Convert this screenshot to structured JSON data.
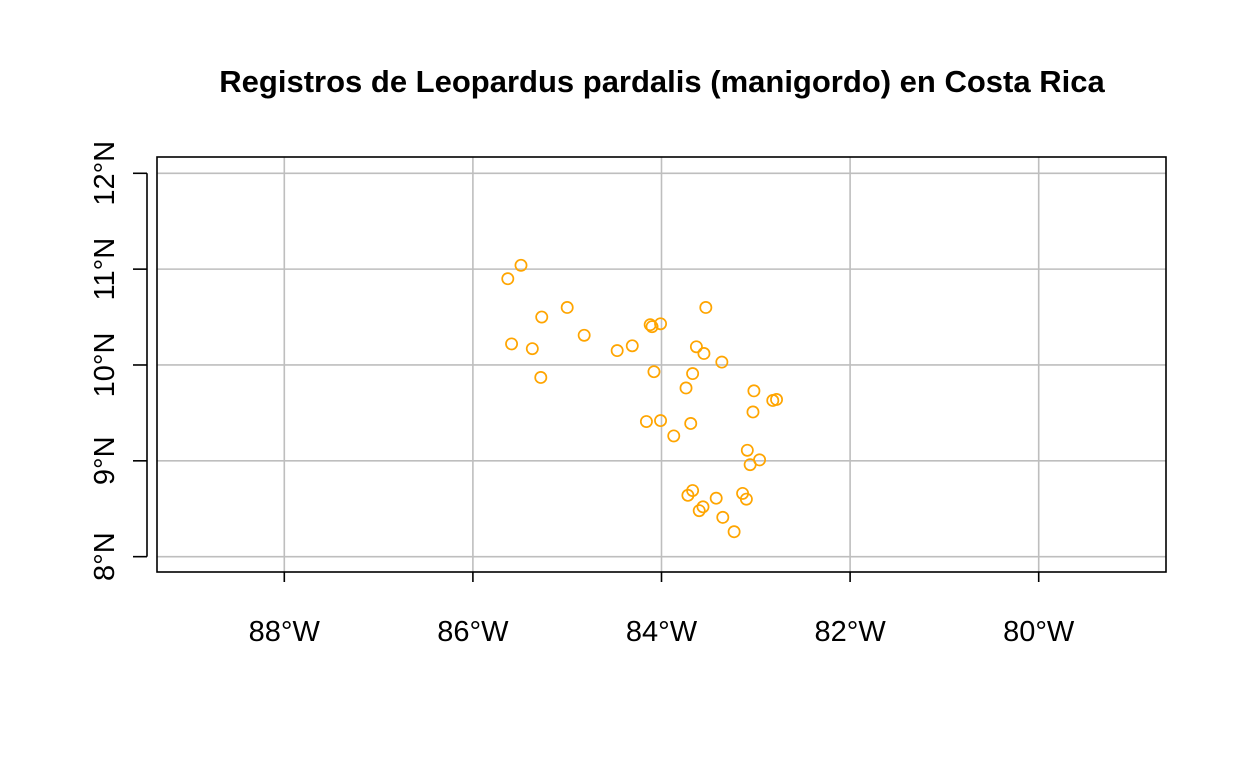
{
  "chart_data": {
    "type": "scatter",
    "title": "Registros de Leopardus pardalis (manigordo) en Costa Rica",
    "xlabel": "",
    "ylabel": "",
    "xlim": [
      -89.35,
      -78.65
    ],
    "ylim": [
      7.84,
      12.17
    ],
    "grid": true,
    "x_ticks": [
      {
        "value": -88,
        "label": "88°W"
      },
      {
        "value": -86,
        "label": "86°W"
      },
      {
        "value": -84,
        "label": "84°W"
      },
      {
        "value": -82,
        "label": "82°W"
      },
      {
        "value": -80,
        "label": "80°W"
      }
    ],
    "y_ticks": [
      {
        "value": 8,
        "label": "8°N"
      },
      {
        "value": 9,
        "label": "9°N"
      },
      {
        "value": 10,
        "label": "10°N"
      },
      {
        "value": 11,
        "label": "11°N"
      },
      {
        "value": 12,
        "label": "12°N"
      }
    ],
    "point_color": "#FFA500",
    "points": [
      {
        "x": -85.49,
        "y": 11.04
      },
      {
        "x": -85.63,
        "y": 10.9
      },
      {
        "x": -85.27,
        "y": 10.5
      },
      {
        "x": -85.0,
        "y": 10.6
      },
      {
        "x": -85.59,
        "y": 10.22
      },
      {
        "x": -85.37,
        "y": 10.17
      },
      {
        "x": -85.28,
        "y": 9.87
      },
      {
        "x": -84.82,
        "y": 10.31
      },
      {
        "x": -84.47,
        "y": 10.15
      },
      {
        "x": -84.31,
        "y": 10.2
      },
      {
        "x": -84.12,
        "y": 10.42
      },
      {
        "x": -84.1,
        "y": 10.4
      },
      {
        "x": -84.01,
        "y": 10.43
      },
      {
        "x": -83.53,
        "y": 10.6
      },
      {
        "x": -83.63,
        "y": 10.19
      },
      {
        "x": -83.55,
        "y": 10.12
      },
      {
        "x": -83.36,
        "y": 10.03
      },
      {
        "x": -84.08,
        "y": 9.93
      },
      {
        "x": -83.67,
        "y": 9.91
      },
      {
        "x": -83.74,
        "y": 9.76
      },
      {
        "x": -83.02,
        "y": 9.73
      },
      {
        "x": -82.82,
        "y": 9.63
      },
      {
        "x": -82.78,
        "y": 9.64
      },
      {
        "x": -83.03,
        "y": 9.51
      },
      {
        "x": -84.16,
        "y": 9.41
      },
      {
        "x": -84.01,
        "y": 9.42
      },
      {
        "x": -83.69,
        "y": 9.39
      },
      {
        "x": -83.87,
        "y": 9.26
      },
      {
        "x": -83.09,
        "y": 9.11
      },
      {
        "x": -82.96,
        "y": 9.01
      },
      {
        "x": -83.06,
        "y": 8.96
      },
      {
        "x": -83.67,
        "y": 8.69
      },
      {
        "x": -83.72,
        "y": 8.64
      },
      {
        "x": -83.42,
        "y": 8.61
      },
      {
        "x": -83.14,
        "y": 8.66
      },
      {
        "x": -83.1,
        "y": 8.6
      },
      {
        "x": -83.56,
        "y": 8.52
      },
      {
        "x": -83.6,
        "y": 8.48
      },
      {
        "x": -83.35,
        "y": 8.41
      },
      {
        "x": -83.23,
        "y": 8.26
      }
    ]
  }
}
